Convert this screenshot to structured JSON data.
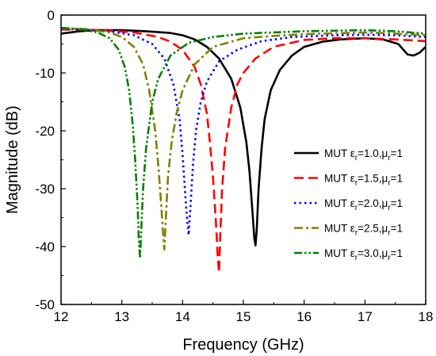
{
  "chart_data": {
    "type": "line",
    "xlabel": "Frequency (GHz)",
    "ylabel": "Magnitude (dB)",
    "xlim": [
      12,
      18
    ],
    "ylim": [
      -50,
      0
    ],
    "xticks": [
      12,
      13,
      14,
      15,
      16,
      17,
      18
    ],
    "yticks": [
      0,
      -10,
      -20,
      -30,
      -40,
      -50
    ],
    "legend_position": "right",
    "series": [
      {
        "name": "MUT εr=1.0,μr=1",
        "legend": {
          "prefix": "MUT ",
          "sym1": "ε",
          "sub1": "r",
          "val1": "=1.0,",
          "sym2": "μ",
          "sub2": "r",
          "val2": "=1"
        },
        "color": "#000000",
        "dash": "solid",
        "x": [
          12.0,
          12.3,
          12.6,
          13.0,
          13.4,
          13.8,
          14.0,
          14.2,
          14.4,
          14.6,
          14.8,
          14.95,
          15.05,
          15.1,
          15.15,
          15.18,
          15.2,
          15.22,
          15.25,
          15.3,
          15.35,
          15.45,
          15.6,
          15.8,
          16.0,
          16.3,
          16.6,
          17.0,
          17.3,
          17.55,
          17.7,
          17.8,
          17.9,
          18.0
        ],
        "y": [
          -3.2,
          -2.8,
          -2.6,
          -2.6,
          -2.8,
          -3.1,
          -3.5,
          -4.2,
          -5.5,
          -7.5,
          -11.0,
          -16.0,
          -22.0,
          -27.0,
          -34.0,
          -38.5,
          -39.8,
          -37.0,
          -30.0,
          -23.0,
          -18.0,
          -13.0,
          -9.5,
          -7.0,
          -5.5,
          -4.6,
          -4.2,
          -4.0,
          -4.2,
          -5.0,
          -6.8,
          -7.0,
          -6.5,
          -5.5
        ]
      },
      {
        "name": "MUT εr=1.5,μr=1",
        "legend": {
          "prefix": "MUT ",
          "sym1": "ε",
          "sub1": "r",
          "val1": "=1.5,",
          "sym2": "μ",
          "sub2": "r",
          "val2": "=1"
        },
        "color": "#ff0000",
        "dash": "long-dash",
        "x": [
          12.0,
          12.4,
          12.8,
          13.2,
          13.6,
          13.8,
          14.0,
          14.2,
          14.3,
          14.4,
          14.45,
          14.5,
          14.55,
          14.58,
          14.6,
          14.62,
          14.65,
          14.7,
          14.8,
          14.9,
          15.0,
          15.2,
          15.5,
          16.0,
          16.5,
          17.0,
          17.5,
          18.0
        ],
        "y": [
          -2.5,
          -2.5,
          -2.7,
          -3.0,
          -3.8,
          -4.6,
          -6.0,
          -9.0,
          -12.0,
          -17.0,
          -22.0,
          -28.0,
          -36.0,
          -42.0,
          -44.5,
          -38.0,
          -30.0,
          -23.0,
          -16.0,
          -12.0,
          -10.0,
          -7.5,
          -5.5,
          -4.3,
          -4.0,
          -4.0,
          -4.2,
          -4.5
        ]
      },
      {
        "name": "MUT εr=2.0,μr=1",
        "legend": {
          "prefix": "MUT ",
          "sym1": "ε",
          "sub1": "r",
          "val1": "=2.0,",
          "sym2": "μ",
          "sub2": "r",
          "val2": "=1"
        },
        "color": "#0000ff",
        "dash": "dot",
        "x": [
          12.0,
          12.4,
          12.8,
          13.2,
          13.5,
          13.7,
          13.85,
          13.95,
          14.0,
          14.05,
          14.08,
          14.1,
          14.13,
          14.17,
          14.22,
          14.3,
          14.4,
          14.6,
          14.9,
          15.3,
          15.8,
          16.5,
          17.0,
          17.5,
          18.0
        ],
        "y": [
          -2.4,
          -2.5,
          -2.8,
          -3.5,
          -5.0,
          -7.5,
          -12.0,
          -18.0,
          -24.0,
          -32.0,
          -36.0,
          -38.0,
          -33.0,
          -26.0,
          -20.0,
          -15.0,
          -11.5,
          -8.0,
          -6.0,
          -4.5,
          -3.8,
          -3.5,
          -3.4,
          -3.5,
          -3.8
        ]
      },
      {
        "name": "MUT εr=2.5,μr=1",
        "legend": {
          "prefix": "MUT ",
          "sym1": "ε",
          "sub1": "r",
          "val1": "=2.5,",
          "sym2": "μ",
          "sub2": "r",
          "val2": "=1"
        },
        "color": "#808000",
        "dash": "dash-dot",
        "x": [
          12.0,
          12.4,
          12.8,
          13.0,
          13.2,
          13.35,
          13.45,
          13.55,
          13.6,
          13.65,
          13.68,
          13.7,
          13.72,
          13.76,
          13.82,
          13.9,
          14.0,
          14.2,
          14.5,
          15.0,
          15.5,
          16.0,
          17.0,
          17.5,
          18.0
        ],
        "y": [
          -2.3,
          -2.4,
          -3.0,
          -3.8,
          -5.5,
          -8.5,
          -13.0,
          -20.0,
          -26.0,
          -33.0,
          -38.0,
          -40.5,
          -36.0,
          -28.0,
          -22.0,
          -17.0,
          -13.0,
          -8.5,
          -5.5,
          -4.0,
          -3.6,
          -3.3,
          -3.0,
          -3.2,
          -3.5
        ]
      },
      {
        "name": "MUT εr=3.0,μr=1",
        "legend": {
          "prefix": "MUT ",
          "sym1": "ε",
          "sub1": "r",
          "val1": "=3.0,",
          "sym2": "μ",
          "sub2": "r",
          "val2": "=1"
        },
        "color": "#008000",
        "dash": "dash-dot-dot",
        "x": [
          12.0,
          12.3,
          12.6,
          12.8,
          12.95,
          13.05,
          13.12,
          13.18,
          13.22,
          13.26,
          13.28,
          13.3,
          13.32,
          13.35,
          13.4,
          13.5,
          13.6,
          13.8,
          14.1,
          14.5,
          15.0,
          15.5,
          16.0,
          17.0,
          17.5,
          18.0
        ],
        "y": [
          -2.2,
          -2.4,
          -3.0,
          -4.0,
          -6.0,
          -9.0,
          -13.0,
          -19.0,
          -25.0,
          -33.0,
          -39.0,
          -42.0,
          -37.0,
          -30.0,
          -23.0,
          -15.0,
          -11.0,
          -7.0,
          -4.8,
          -3.8,
          -3.2,
          -3.0,
          -2.8,
          -2.6,
          -2.8,
          -3.2
        ]
      }
    ]
  }
}
